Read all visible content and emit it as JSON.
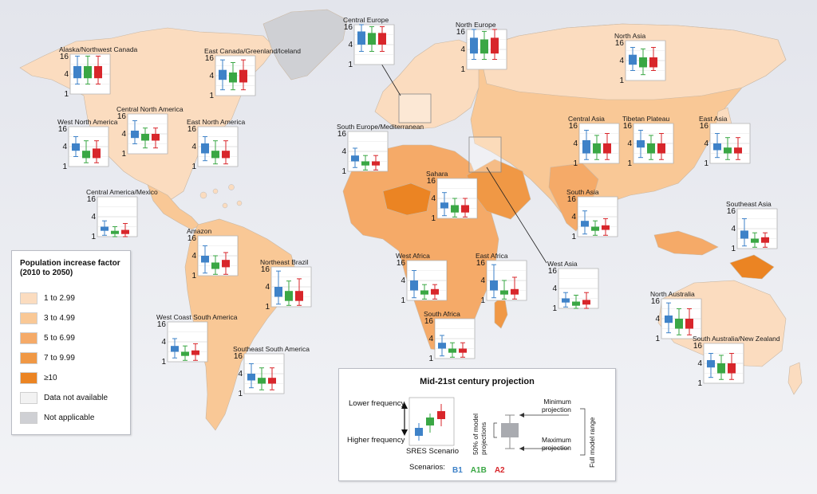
{
  "legend": {
    "title_line1": "Population increase factor",
    "title_line2": "(2010 to 2050)",
    "items": [
      {
        "label": "1 to 2.99",
        "color": "#fbdcbf"
      },
      {
        "label": "3 to 4.99",
        "color": "#f9c896"
      },
      {
        "label": "5 to 6.99",
        "color": "#f5aa68"
      },
      {
        "label": "7 to 9.99",
        "color": "#f09845"
      },
      {
        "label": "≥10",
        "color": "#eb8423"
      },
      {
        "label": "Data not available",
        "color": "#f2f2f2"
      },
      {
        "label": "Not applicable",
        "color": "#cfd0d4"
      }
    ]
  },
  "projection_key": {
    "title": "Mid-21st century projection",
    "lower_frequency": "Lower frequency",
    "higher_frequency": "Higher frequency",
    "sres_scenario": "SRES Scenario",
    "fifty_percent": "50% of model",
    "projections": "projections",
    "minimum_projection_1": "Minimum",
    "minimum_projection_2": "projection",
    "maximum_projection_1": "Maximum",
    "maximum_projection_2": "projection",
    "full_model_range": "Full model range",
    "scenarios_label": "Scenarios:",
    "scenarios": [
      {
        "name": "B1",
        "color": "#3e82c8"
      },
      {
        "name": "A1B",
        "color": "#3aa744"
      },
      {
        "name": "A2",
        "color": "#d8262b"
      }
    ]
  },
  "chart_data": {
    "type": "boxplot",
    "y_ticks": [
      "16",
      "4",
      "1"
    ],
    "scale": "log2",
    "ylim": [
      1,
      16
    ],
    "series": [
      "B1",
      "A1B",
      "A2"
    ],
    "regions": [
      {
        "name": "Alaska/Northwest Canada",
        "boxes": [
          [
            3,
            7,
            14,
            2
          ],
          [
            3,
            7,
            14,
            2
          ],
          [
            3,
            7,
            14,
            2
          ]
        ]
      },
      {
        "name": "East Canada/Greenland/Iceland",
        "boxes": [
          [
            3,
            6,
            12,
            1.5
          ],
          [
            2.5,
            5,
            10,
            1.5
          ],
          [
            2.5,
            6,
            12,
            1.5
          ]
        ]
      },
      {
        "name": "Central Europe",
        "boxes": [
          [
            4,
            10,
            16,
            2.5
          ],
          [
            4,
            9,
            14,
            2.5
          ],
          [
            4,
            9,
            14,
            2.5
          ]
        ]
      },
      {
        "name": "North Europe",
        "boxes": [
          [
            3,
            9,
            16,
            2
          ],
          [
            3,
            8,
            14,
            2
          ],
          [
            3,
            9,
            16,
            2
          ]
        ]
      },
      {
        "name": "North Asia",
        "boxes": [
          [
            3,
            6,
            10,
            2
          ],
          [
            2.5,
            5,
            9,
            1.5
          ],
          [
            2.5,
            5,
            10,
            2
          ]
        ]
      },
      {
        "name": "Central North America",
        "boxes": [
          [
            3,
            5,
            10,
            2
          ],
          [
            2.5,
            4,
            6,
            1.5
          ],
          [
            2.5,
            4,
            6,
            1.5
          ]
        ]
      },
      {
        "name": "West North America",
        "boxes": [
          [
            3,
            5,
            8,
            2
          ],
          [
            1.8,
            3,
            6,
            1.3
          ],
          [
            1.8,
            3.5,
            6,
            1.3
          ]
        ]
      },
      {
        "name": "East North America",
        "boxes": [
          [
            2.5,
            5,
            8,
            1.5
          ],
          [
            1.8,
            3,
            6,
            1.2
          ],
          [
            1.8,
            3,
            6,
            1.2
          ]
        ]
      },
      {
        "name": "South Europe/Mediterranean",
        "boxes": [
          [
            2,
            3,
            5,
            1.3
          ],
          [
            1.5,
            2,
            3,
            1.1
          ],
          [
            1.5,
            2,
            3,
            1.1
          ]
        ]
      },
      {
        "name": "Central Asia",
        "boxes": [
          [
            2,
            5,
            10,
            1.3
          ],
          [
            2,
            4,
            7,
            1.3
          ],
          [
            2,
            4,
            8,
            1.3
          ]
        ]
      },
      {
        "name": "Tibetan Plateau",
        "boxes": [
          [
            3,
            5,
            10,
            1.5
          ],
          [
            2,
            4,
            7,
            1.3
          ],
          [
            2,
            4,
            8,
            1.3
          ]
        ]
      },
      {
        "name": "East Asia",
        "boxes": [
          [
            2.5,
            4,
            8,
            1.5
          ],
          [
            2,
            3,
            6,
            1.3
          ],
          [
            2,
            3,
            6,
            1.3
          ]
        ]
      },
      {
        "name": "Central America/Mexico",
        "boxes": [
          [
            1.5,
            2,
            3,
            1.1
          ],
          [
            1.2,
            1.5,
            2,
            1
          ],
          [
            1.2,
            1.6,
            2.5,
            1
          ]
        ]
      },
      {
        "name": "Sahara",
        "boxes": [
          [
            2,
            3,
            6,
            1.2
          ],
          [
            1.5,
            2.5,
            4,
            1.1
          ],
          [
            1.5,
            2.5,
            4,
            1.1
          ]
        ]
      },
      {
        "name": "South Asia",
        "boxes": [
          [
            2,
            3,
            6,
            1.2
          ],
          [
            1.5,
            2,
            3,
            1.1
          ],
          [
            1.6,
            2.2,
            3.5,
            1.1
          ]
        ]
      },
      {
        "name": "Southeast Asia",
        "boxes": [
          [
            2,
            3.5,
            8,
            1.2
          ],
          [
            1.5,
            2,
            3,
            1.1
          ],
          [
            1.5,
            2.2,
            3,
            1.1
          ]
        ]
      },
      {
        "name": "Amazon",
        "boxes": [
          [
            2.5,
            4,
            8,
            1.2
          ],
          [
            1.6,
            2.5,
            4,
            1.1
          ],
          [
            1.8,
            3,
            5,
            1.1
          ]
        ]
      },
      {
        "name": "Northeast Brazil",
        "boxes": [
          [
            2,
            4,
            12,
            1.2
          ],
          [
            1.5,
            3,
            6,
            1.1
          ],
          [
            1.5,
            3,
            7,
            1.1
          ]
        ]
      },
      {
        "name": "West Africa",
        "boxes": [
          [
            2,
            4,
            8,
            1.2
          ],
          [
            1.5,
            2,
            3,
            1.1
          ],
          [
            1.5,
            2.2,
            3,
            1.1
          ]
        ]
      },
      {
        "name": "East Africa",
        "boxes": [
          [
            2,
            4,
            12,
            1.2
          ],
          [
            1.5,
            2,
            4,
            1.1
          ],
          [
            1.5,
            2.2,
            5,
            1.1
          ]
        ]
      },
      {
        "name": "West Asia",
        "boxes": [
          [
            1.5,
            2,
            3,
            1.1
          ],
          [
            1.2,
            1.6,
            2.5,
            1
          ],
          [
            1.3,
            1.8,
            3,
            1
          ]
        ]
      },
      {
        "name": "North Australia",
        "boxes": [
          [
            3,
            5,
            12,
            1.5
          ],
          [
            2,
            4,
            8,
            1.3
          ],
          [
            2,
            4,
            8,
            1.3
          ]
        ]
      },
      {
        "name": "West Coast South America",
        "boxes": [
          [
            2,
            3,
            5,
            1.3
          ],
          [
            1.5,
            2,
            3,
            1.1
          ],
          [
            1.6,
            2.2,
            3.5,
            1.1
          ]
        ]
      },
      {
        "name": "Southeast South America",
        "boxes": [
          [
            2.5,
            4,
            8,
            1.5
          ],
          [
            2,
            3,
            6,
            1.3
          ],
          [
            2,
            3,
            6,
            1.3
          ]
        ]
      },
      {
        "name": "South Africa",
        "boxes": [
          [
            2,
            3,
            5,
            1.2
          ],
          [
            1.5,
            2,
            3,
            1.1
          ],
          [
            1.5,
            2,
            3,
            1.1
          ]
        ]
      },
      {
        "name": "South Australia/New Zealand",
        "boxes": [
          [
            3,
            5,
            8,
            1.5
          ],
          [
            2,
            4,
            7,
            1.3
          ],
          [
            2,
            4,
            8,
            1.3
          ]
        ]
      }
    ]
  }
}
